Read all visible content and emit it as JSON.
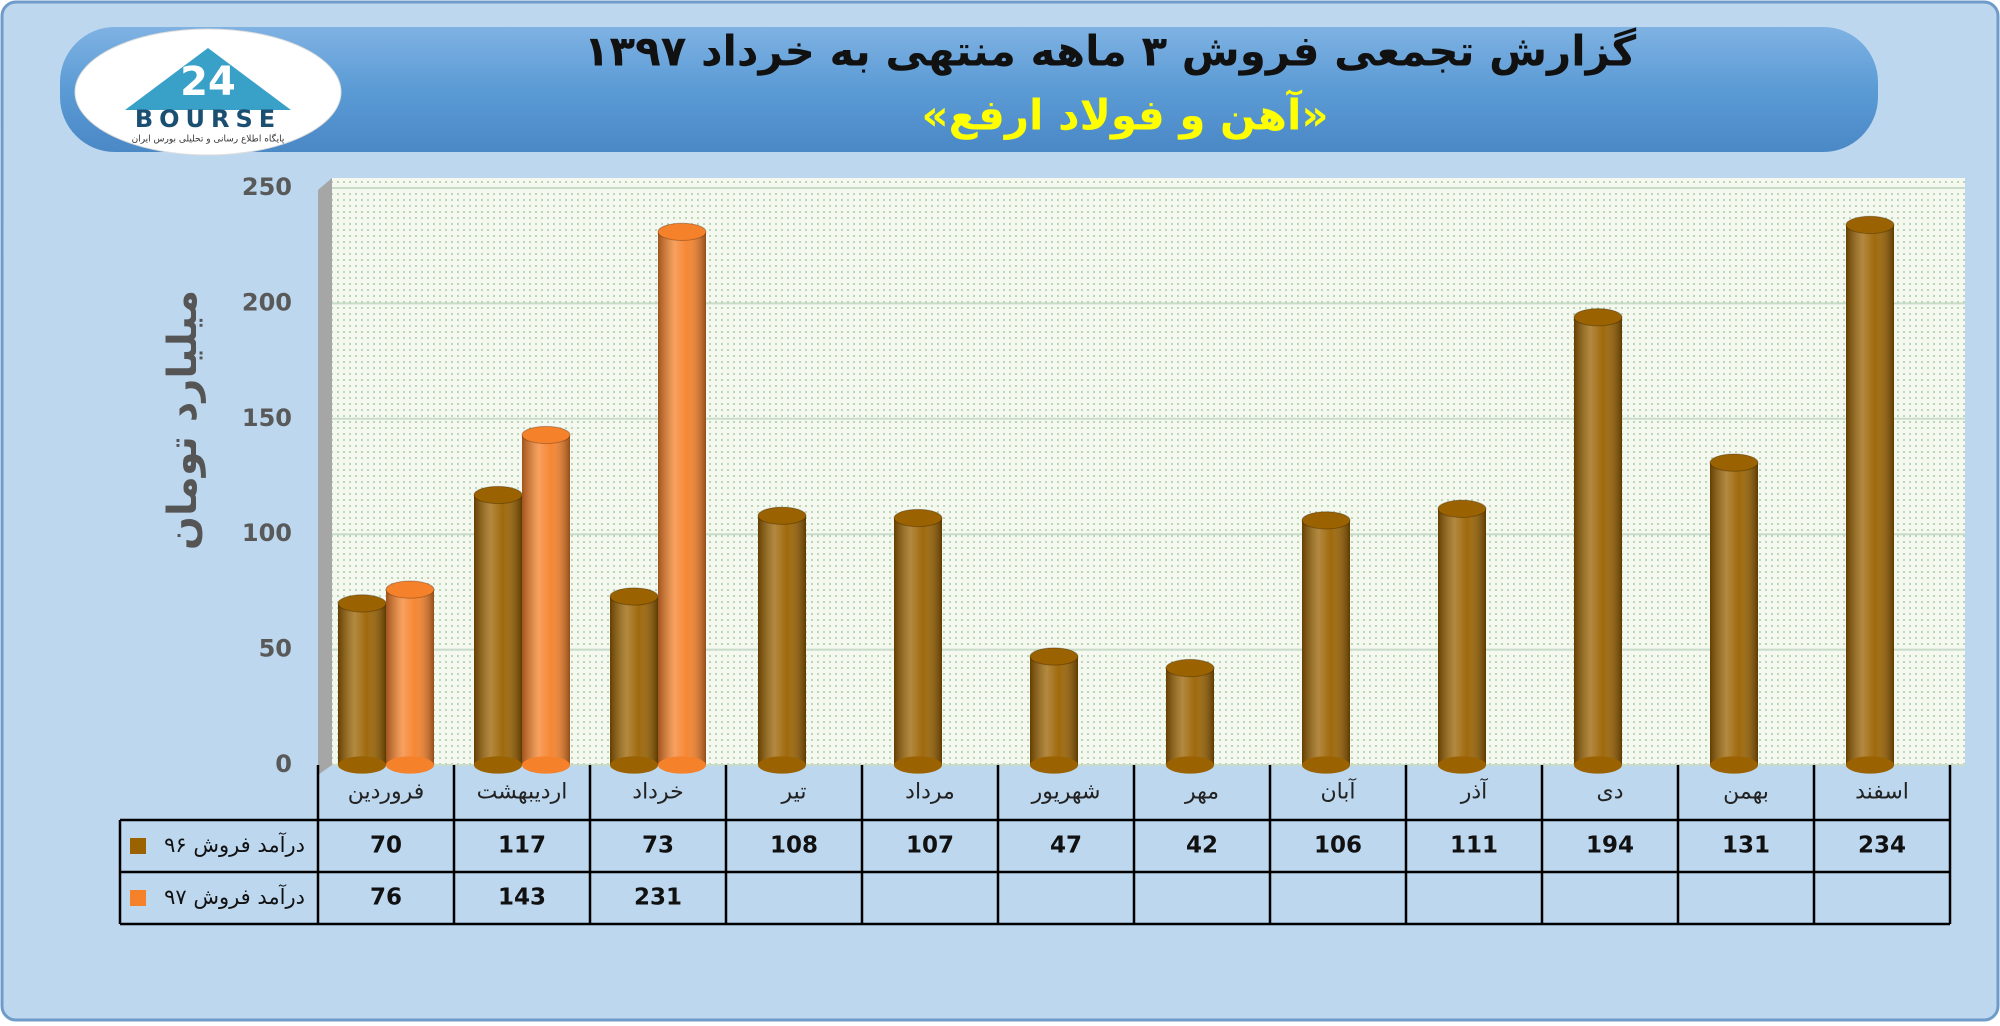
{
  "logo": {
    "number": "24",
    "text": "BOURSE",
    "tagline": "پایگاه اطلاع رسانی و تحلیلی بورس ایران"
  },
  "chart_data": {
    "type": "bar",
    "title": "گزارش تجمعی فروش ۳ ماهه منتهی به خرداد ۱۳۹۷",
    "subtitle": "«آهن و فولاد ارفع»",
    "y_label": "میلیارد تومان",
    "categories": [
      "فروردین",
      "اردیبهشت",
      "خرداد",
      "تیر",
      "مرداد",
      "شهریور",
      "مهر",
      "آبان",
      "آذر",
      "دی",
      "بهمن",
      "اسفند"
    ],
    "series": [
      {
        "name": "درآمد فروش ۹۶",
        "color": "#9a6200",
        "values": [
          70,
          117,
          73,
          108,
          107,
          47,
          42,
          106,
          111,
          194,
          131,
          234
        ]
      },
      {
        "name": "درآمد فروش ۹۷",
        "color": "#f5812a",
        "values": [
          76,
          143,
          231,
          null,
          null,
          null,
          null,
          null,
          null,
          null,
          null,
          null
        ]
      }
    ],
    "ylim": [
      0,
      250
    ],
    "yticks": [
      0,
      50,
      100,
      150,
      200,
      250
    ],
    "grid": true
  }
}
